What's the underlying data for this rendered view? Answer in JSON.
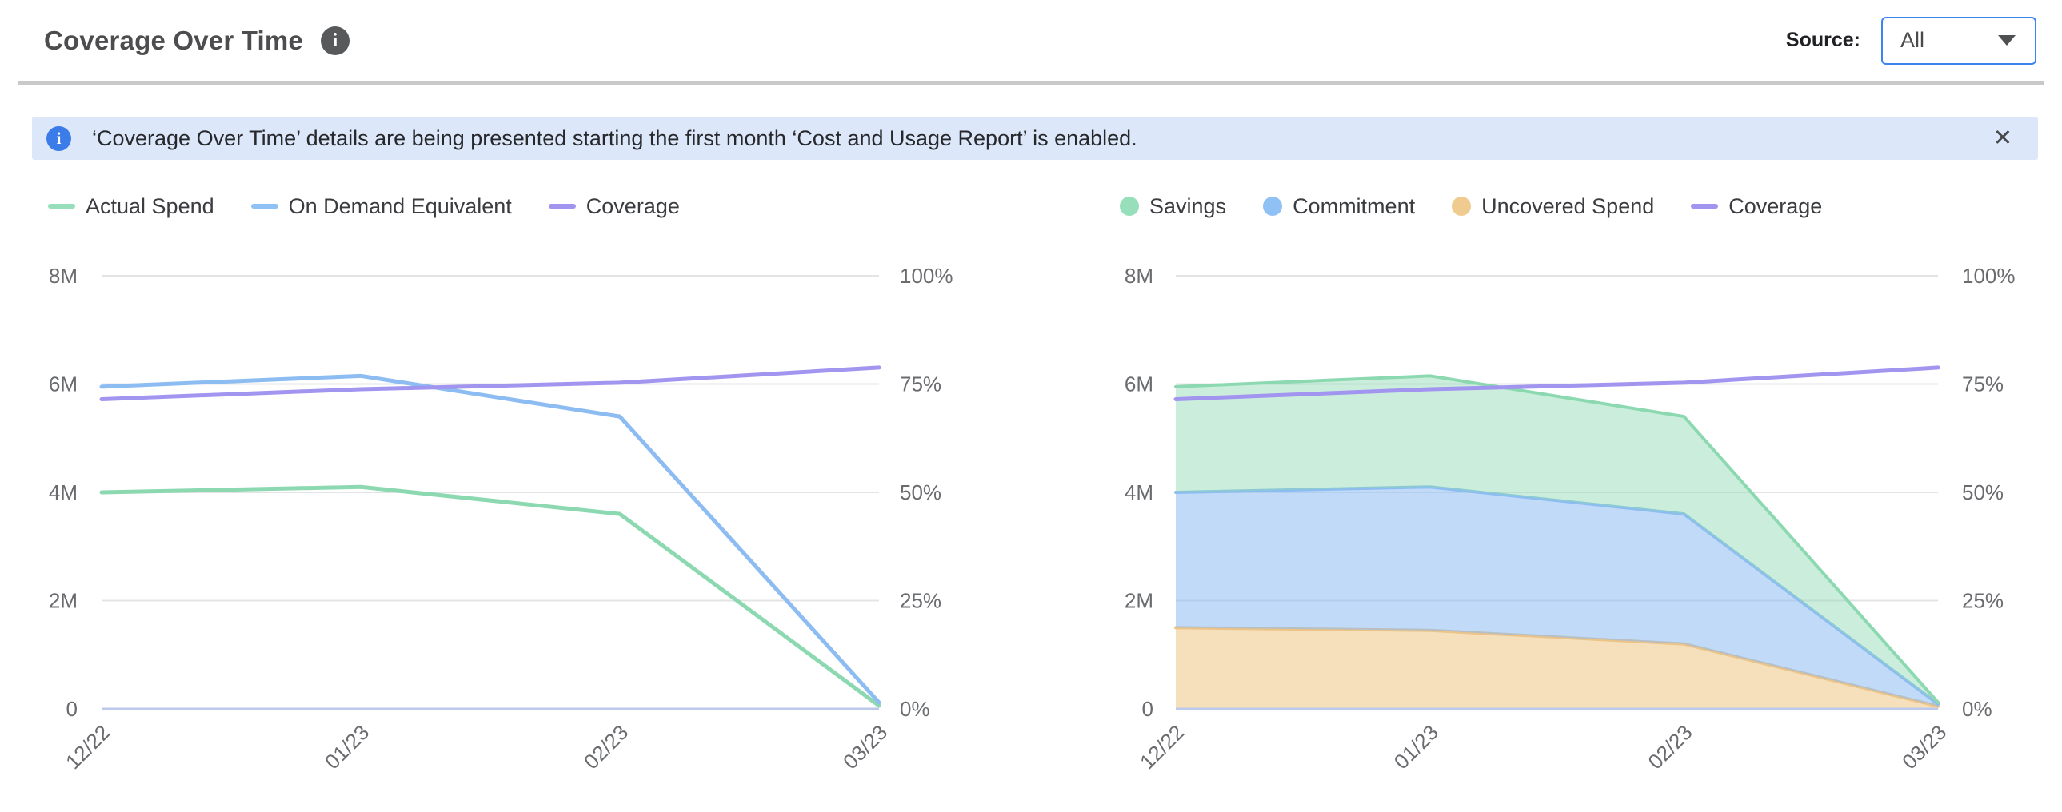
{
  "header": {
    "title": "Coverage Over Time",
    "info_icon_glyph": "i",
    "source_label": "Source:",
    "source_value": "All"
  },
  "banner": {
    "text": "‘Coverage Over Time’ details are being presented starting the first month ‘Cost and Usage Report’ is enabled.",
    "close_glyph": "✕"
  },
  "colors": {
    "green_line": "#8cd9b1",
    "green_fill": "rgba(140,217,177,0.45)",
    "green_swatch": "#97dfba",
    "blue_line": "#8cbcf2",
    "blue_fill": "rgba(140,188,242,0.55)",
    "blue_swatch": "#8fc1f5",
    "tan_line": "#ecc488",
    "tan_fill": "rgba(240,208,150,0.65)",
    "tan_swatch": "#efcb8f",
    "purple_line": "#a195ef",
    "gridline": "#e4e4e7",
    "axis_baseline": "#bcc8ec",
    "tick_text": "#6a6b6f",
    "dropdown_border": "#3e83f2",
    "banner_bg": "#dce8fa",
    "banner_icon": "#3b7ce8"
  },
  "chart_data": [
    {
      "type": "line",
      "title": "",
      "categories": [
        "12/22",
        "01/23",
        "02/23",
        "03/23"
      ],
      "series": [
        {
          "name": "Actual Spend",
          "axis": "left",
          "unit": "M",
          "color_key": "green",
          "values": [
            4.0,
            4.1,
            3.6,
            0.06
          ]
        },
        {
          "name": "On Demand Equivalent",
          "axis": "left",
          "unit": "M",
          "color_key": "blue",
          "values": [
            5.95,
            6.15,
            5.4,
            0.12
          ]
        },
        {
          "name": "Coverage",
          "axis": "right",
          "unit": "%",
          "color_key": "purple",
          "values": [
            71.5,
            73.8,
            75.3,
            78.8
          ]
        }
      ],
      "left_axis": {
        "ticks": [
          "8M",
          "6M",
          "4M",
          "2M",
          "0"
        ],
        "tick_values": [
          8,
          6,
          4,
          2,
          0
        ],
        "range": [
          0,
          8
        ]
      },
      "right_axis": {
        "ticks": [
          "100%",
          "75%",
          "50%",
          "25%",
          "0%"
        ],
        "tick_values": [
          100,
          75,
          50,
          25,
          0
        ],
        "range": [
          0,
          100
        ]
      },
      "grid": true,
      "legend_position": "top-left",
      "legend": [
        {
          "label": "Actual Spend",
          "swatch": "line",
          "color_key": "green"
        },
        {
          "label": "On Demand Equivalent",
          "swatch": "line",
          "color_key": "blue"
        },
        {
          "label": "Coverage",
          "swatch": "line",
          "color_key": "purple"
        }
      ]
    },
    {
      "type": "area",
      "title": "",
      "stacked": true,
      "categories": [
        "12/22",
        "01/23",
        "02/23",
        "03/23"
      ],
      "series": [
        {
          "name": "Uncovered Spend",
          "axis": "left",
          "unit": "M",
          "color_key": "tan",
          "stack_order": 0,
          "values": [
            1.5,
            1.45,
            1.2,
            0.05
          ]
        },
        {
          "name": "Commitment",
          "axis": "left",
          "unit": "M",
          "color_key": "blue",
          "stack_order": 1,
          "values": [
            2.5,
            2.65,
            2.4,
            0.04
          ]
        },
        {
          "name": "Savings",
          "axis": "left",
          "unit": "M",
          "color_key": "green",
          "stack_order": 2,
          "values": [
            1.95,
            2.05,
            1.8,
            0.03
          ]
        },
        {
          "name": "Coverage",
          "axis": "right",
          "unit": "%",
          "type": "line",
          "color_key": "purple",
          "values": [
            71.5,
            73.8,
            75.3,
            78.8
          ]
        }
      ],
      "left_axis": {
        "ticks": [
          "8M",
          "6M",
          "4M",
          "2M",
          "0"
        ],
        "tick_values": [
          8,
          6,
          4,
          2,
          0
        ],
        "range": [
          0,
          8
        ]
      },
      "right_axis": {
        "ticks": [
          "100%",
          "75%",
          "50%",
          "25%",
          "0%"
        ],
        "tick_values": [
          100,
          75,
          50,
          25,
          0
        ],
        "range": [
          0,
          100
        ]
      },
      "grid": true,
      "legend_position": "top-left",
      "legend": [
        {
          "label": "Savings",
          "swatch": "dot",
          "color_key": "green"
        },
        {
          "label": "Commitment",
          "swatch": "dot",
          "color_key": "blue"
        },
        {
          "label": "Uncovered Spend",
          "swatch": "dot",
          "color_key": "tan"
        },
        {
          "label": "Coverage",
          "swatch": "line",
          "color_key": "purple"
        }
      ]
    }
  ]
}
